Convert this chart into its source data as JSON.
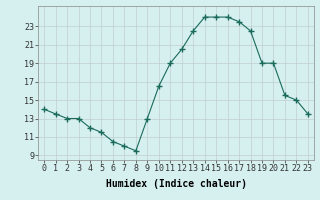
{
  "x": [
    0,
    1,
    2,
    3,
    4,
    5,
    6,
    7,
    8,
    9,
    10,
    11,
    12,
    13,
    14,
    15,
    16,
    17,
    18,
    19,
    20,
    21,
    22,
    23
  ],
  "y": [
    14.0,
    13.5,
    13.0,
    13.0,
    12.0,
    11.5,
    10.5,
    10.0,
    9.5,
    13.0,
    16.5,
    19.0,
    20.5,
    22.5,
    24.0,
    24.0,
    24.0,
    23.5,
    22.5,
    19.0,
    19.0,
    15.5,
    15.0,
    13.5
  ],
  "line_color": "#1a6b5a",
  "marker": "+",
  "marker_size": 4,
  "bg_color": "#d6f0f0",
  "grid_color": "#c0cece",
  "xlabel": "Humidex (Indice chaleur)",
  "xlabel_fontsize": 7,
  "ylabel_ticks": [
    9,
    11,
    13,
    15,
    17,
    19,
    21,
    23
  ],
  "xlim": [
    -0.5,
    23.5
  ],
  "ylim": [
    8.5,
    25.2
  ],
  "tick_fontsize": 6.0
}
